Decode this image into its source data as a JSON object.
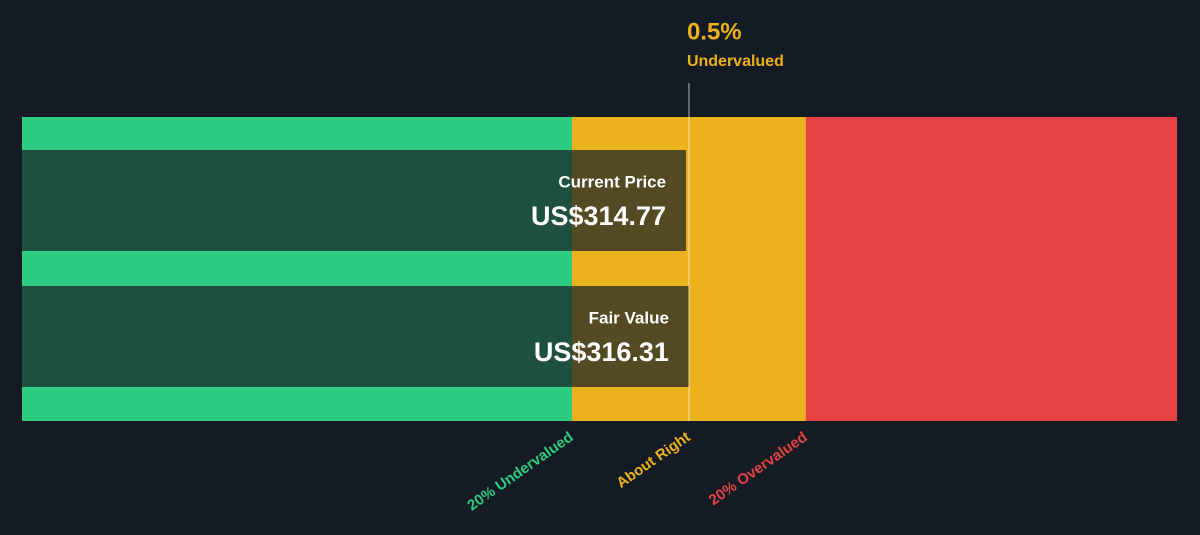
{
  "chart_data": {
    "type": "valuation",
    "xlim": [
      -44.3,
      580.2
    ],
    "zone_bounds": [
      253.05,
      379.57
    ],
    "zones": [
      {
        "name": "20% Undervalued",
        "color": "#2ecc80"
      },
      {
        "name": "About Right",
        "color": "#ecb21c"
      },
      {
        "name": "20% Overvalued",
        "color": "#e54343"
      }
    ],
    "bars": [
      {
        "name": "Current Price",
        "value": 314.77,
        "value_label": "US$314.77"
      },
      {
        "name": "Fair Value",
        "value": 316.31,
        "value_label": "US$316.31"
      }
    ],
    "annotation": {
      "value": {
        "value": 0.5,
        "label": "0.5%"
      },
      "text": "Undervalued"
    }
  }
}
